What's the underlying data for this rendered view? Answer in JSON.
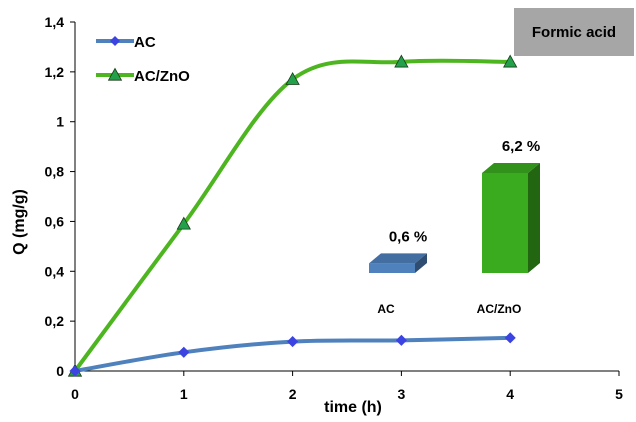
{
  "chart_data": {
    "type": "line",
    "xlabel": "time (h)",
    "ylabel": "Q (mg/g)",
    "xlim": [
      0,
      5
    ],
    "ylim": [
      0,
      1.4
    ],
    "x_ticks": [
      "0",
      "1",
      "2",
      "3",
      "4",
      "5"
    ],
    "y_ticks": [
      "0",
      "0,2",
      "0,4",
      "0,6",
      "0,8",
      "1",
      "1,2",
      "1,4"
    ],
    "x_tick_values": [
      0,
      1,
      2,
      3,
      4,
      5
    ],
    "y_tick_values": [
      0,
      0.2,
      0.4,
      0.6,
      0.8,
      1.0,
      1.2,
      1.4
    ],
    "grid": false,
    "legend_position": "top-left",
    "series": [
      {
        "name": "AC",
        "color": "#4f81bd",
        "marker": "diamond",
        "marker_color": "#3b44e0",
        "x": [
          0,
          1,
          2,
          3,
          4
        ],
        "y": [
          0,
          0.075,
          0.118,
          0.123,
          0.133
        ]
      },
      {
        "name": "AC/ZnO",
        "color": "#4db51f",
        "marker": "triangle",
        "marker_color": "#22a04a",
        "x": [
          0,
          1,
          2,
          3,
          4
        ],
        "y": [
          0,
          0.59,
          1.17,
          1.24,
          1.24
        ]
      }
    ],
    "annotation_box": {
      "text": "Formic acid",
      "color": "#a6a6a6"
    },
    "inset_bar": {
      "categories": [
        "AC",
        "AC/ZnO"
      ],
      "values": [
        0.6,
        6.2
      ],
      "value_labels": [
        "0,6 %",
        "6,2 %"
      ],
      "colors": [
        "#4f81bd",
        "#3aaa1e"
      ]
    }
  }
}
